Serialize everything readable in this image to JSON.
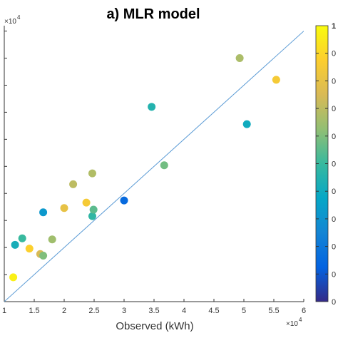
{
  "chart_data": {
    "type": "scatter",
    "title": "a) MLR model",
    "xlabel": "Observed (kWh)",
    "ylabel": "",
    "x_multiplier": "×10",
    "x_multiplier_exp": "4",
    "y_multiplier": "×10",
    "y_multiplier_exp": "4",
    "xlim": [
      1,
      6
    ],
    "ylim": [
      1,
      6.1
    ],
    "x_ticks": [
      1,
      1.5,
      2,
      2.5,
      3,
      3.5,
      4,
      4.5,
      5,
      5.5,
      6
    ],
    "x_tick_labels": [
      "1",
      "1.5",
      "2",
      "2.5",
      "3",
      "3.5",
      "4",
      "4.5",
      "5",
      "5.5",
      "6"
    ],
    "reference_line": "y = x",
    "reference_line_color": "#5b9bd5",
    "grid": false,
    "colorbar": {
      "colormap": "parula",
      "range": [
        0,
        1
      ],
      "top_label": "1",
      "bottom_label": "0",
      "tick_labels": [
        "0",
        "0",
        "0",
        "0",
        "0",
        "0",
        "0",
        "0",
        "0"
      ]
    },
    "points": [
      {
        "x": 1.15,
        "y": 1.45,
        "c": 0.97
      },
      {
        "x": 1.18,
        "y": 2.05,
        "c": 0.42
      },
      {
        "x": 1.3,
        "y": 2.17,
        "c": 0.5
      },
      {
        "x": 1.42,
        "y": 1.98,
        "c": 0.88
      },
      {
        "x": 1.6,
        "y": 1.88,
        "c": 0.75
      },
      {
        "x": 1.65,
        "y": 1.85,
        "c": 0.6
      },
      {
        "x": 1.65,
        "y": 2.65,
        "c": 0.32
      },
      {
        "x": 1.8,
        "y": 2.15,
        "c": 0.65
      },
      {
        "x": 2.0,
        "y": 2.73,
        "c": 0.8
      },
      {
        "x": 2.15,
        "y": 3.17,
        "c": 0.7
      },
      {
        "x": 2.37,
        "y": 2.83,
        "c": 0.85
      },
      {
        "x": 2.47,
        "y": 2.58,
        "c": 0.48
      },
      {
        "x": 2.49,
        "y": 2.7,
        "c": 0.55
      },
      {
        "x": 2.47,
        "y": 3.37,
        "c": 0.68
      },
      {
        "x": 3.0,
        "y": 2.87,
        "c": 0.15
      },
      {
        "x": 3.46,
        "y": 4.6,
        "c": 0.45
      },
      {
        "x": 3.67,
        "y": 3.52,
        "c": 0.58
      },
      {
        "x": 4.93,
        "y": 5.5,
        "c": 0.67
      },
      {
        "x": 5.05,
        "y": 4.28,
        "c": 0.4
      },
      {
        "x": 5.54,
        "y": 5.1,
        "c": 0.85
      }
    ]
  }
}
